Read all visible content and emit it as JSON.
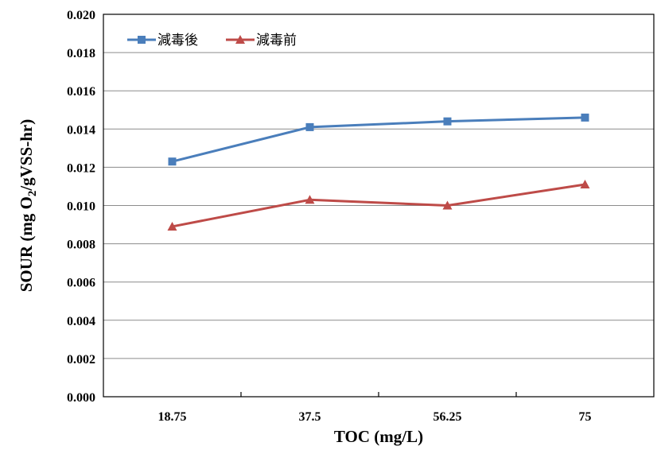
{
  "chart_data": {
    "type": "line",
    "categories": [
      "18.75",
      "37.5",
      "56.25",
      "75"
    ],
    "series": [
      {
        "name": "減毒後",
        "color": "#4a7ebb",
        "marker": "square",
        "values": [
          0.0123,
          0.0141,
          0.0144,
          0.0146
        ]
      },
      {
        "name": "減毒前",
        "color": "#be4b48",
        "marker": "triangle",
        "values": [
          0.0089,
          0.0103,
          0.01,
          0.0111
        ]
      }
    ],
    "title": "",
    "xlabel": "TOC (mg/L)",
    "ylabel": {
      "prefix": "SOUR (mg O",
      "subscript": "2",
      "suffix": "/gVSS-hr)"
    },
    "ylim": [
      0,
      0.02
    ],
    "yticks": [
      "0.000",
      "0.002",
      "0.004",
      "0.006",
      "0.008",
      "0.010",
      "0.012",
      "0.014",
      "0.016",
      "0.018",
      "0.020"
    ],
    "grid": true,
    "legend_position": "top-left"
  }
}
